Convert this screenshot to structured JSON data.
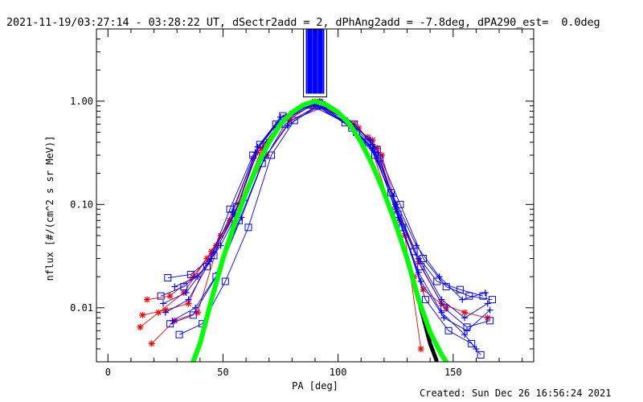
{
  "title": "2021-11-19/03:27:14 - 03:28:22 UT, dSectr2add = 2, dPhAng2add = -7.8deg, dPA290_est=  0.0deg",
  "footer": "Created: Sun Dec 26 16:56:24 2021",
  "colors": {
    "red": "#ff0000",
    "blue": "#0000ff",
    "green": "#00ff00",
    "black": "#000000",
    "axis": "#000000"
  },
  "chart_data": {
    "type": "line",
    "title": "2021-11-19/03:27:14 - 03:28:22 UT, dSectr2add = 2, dPhAng2add = -7.8deg, dPA290_est=  0.0deg",
    "xlabel": "PA [deg]",
    "ylabel": "nflux [#/(cm^2 s sr MeV)]",
    "xlim": [
      -5,
      185
    ],
    "ylim": [
      0.003,
      5
    ],
    "yscale": "log",
    "xticks": [
      0,
      50,
      100,
      150
    ],
    "xtick_labels": [
      "0",
      "50",
      "100",
      "150"
    ],
    "yticks": [
      0.01,
      0.1,
      1.0
    ],
    "ytick_labels": [
      "0.01",
      "0.10",
      "1.00"
    ],
    "grid": false,
    "vertical_band": {
      "x": [
        86,
        94
      ],
      "y": [
        1.1,
        5
      ],
      "color": "#0000ff"
    },
    "series": [
      {
        "color": "#ff0000",
        "marker": "star",
        "values": [
          [
            15,
            0.0085
          ],
          [
            25,
            0.0095
          ],
          [
            35,
            0.011
          ],
          [
            45,
            0.035
          ],
          [
            55,
            0.08
          ],
          [
            65,
            0.32
          ],
          [
            75,
            0.6
          ],
          [
            90,
            0.95
          ],
          [
            105,
            0.6
          ],
          [
            115,
            0.42
          ],
          [
            125,
            0.1
          ],
          [
            135,
            0.028
          ],
          [
            145,
            0.011
          ],
          [
            155,
            0.009
          ],
          [
            165,
            0.008
          ]
        ]
      },
      {
        "color": "#ff0000",
        "marker": "star",
        "values": [
          [
            14,
            0.0065
          ],
          [
            22,
            0.009
          ],
          [
            33,
            0.014
          ],
          [
            43,
            0.03
          ],
          [
            53,
            0.07
          ],
          [
            63,
            0.28
          ],
          [
            73,
            0.55
          ],
          [
            88,
            0.9
          ],
          [
            103,
            0.65
          ],
          [
            113,
            0.45
          ],
          [
            123,
            0.09
          ],
          [
            133,
            0.02
          ],
          [
            140,
            0.0055
          ]
        ]
      },
      {
        "color": "#ff0000",
        "marker": "star",
        "values": [
          [
            17,
            0.012
          ],
          [
            27,
            0.013
          ],
          [
            37,
            0.02
          ],
          [
            47,
            0.04
          ],
          [
            57,
            0.1
          ],
          [
            67,
            0.35
          ],
          [
            77,
            0.7
          ],
          [
            92,
            1.0
          ],
          [
            107,
            0.6
          ],
          [
            117,
            0.35
          ],
          [
            127,
            0.07
          ],
          [
            137,
            0.015
          ],
          [
            147,
            0.01
          ]
        ]
      },
      {
        "color": "#ff0000",
        "marker": "star",
        "values": [
          [
            19,
            0.0045
          ],
          [
            29,
            0.0075
          ],
          [
            39,
            0.009
          ],
          [
            49,
            0.05
          ],
          [
            59,
            0.12
          ],
          [
            69,
            0.3
          ],
          [
            79,
            0.65
          ],
          [
            94,
            0.88
          ],
          [
            109,
            0.55
          ],
          [
            119,
            0.3
          ],
          [
            129,
            0.05
          ],
          [
            136,
            0.004
          ]
        ]
      },
      {
        "color": "#0000ff",
        "marker": "square",
        "values": [
          [
            23,
            0.013
          ],
          [
            33,
            0.016
          ],
          [
            43,
            0.025
          ],
          [
            53,
            0.09
          ],
          [
            63,
            0.3
          ],
          [
            73,
            0.6
          ],
          [
            88,
            0.92
          ],
          [
            103,
            0.62
          ],
          [
            113,
            0.4
          ],
          [
            123,
            0.13
          ],
          [
            133,
            0.035
          ],
          [
            143,
            0.018
          ],
          [
            153,
            0.015
          ],
          [
            163,
            0.013
          ]
        ]
      },
      {
        "color": "#0000ff",
        "marker": "plus",
        "values": [
          [
            25,
            0.009
          ],
          [
            35,
            0.012
          ],
          [
            45,
            0.03
          ],
          [
            55,
            0.08
          ],
          [
            65,
            0.36
          ],
          [
            75,
            0.7
          ],
          [
            90,
            0.95
          ],
          [
            105,
            0.6
          ],
          [
            115,
            0.38
          ],
          [
            125,
            0.1
          ],
          [
            135,
            0.03
          ],
          [
            145,
            0.012
          ],
          [
            155,
            0.008
          ],
          [
            165,
            0.011
          ]
        ]
      },
      {
        "color": "#0000ff",
        "marker": "square",
        "values": [
          [
            27,
            0.007
          ],
          [
            37,
            0.0085
          ],
          [
            47,
            0.02
          ],
          [
            57,
            0.07
          ],
          [
            67,
            0.25
          ],
          [
            77,
            0.6
          ],
          [
            91,
            0.9
          ],
          [
            106,
            0.55
          ],
          [
            116,
            0.3
          ],
          [
            126,
            0.08
          ],
          [
            136,
            0.025
          ],
          [
            146,
            0.01
          ],
          [
            156,
            0.0065
          ],
          [
            166,
            0.0075
          ]
        ]
      },
      {
        "color": "#0000ff",
        "marker": "plus",
        "values": [
          [
            29,
            0.016
          ],
          [
            39,
            0.02
          ],
          [
            49,
            0.04
          ],
          [
            59,
            0.11
          ],
          [
            69,
            0.4
          ],
          [
            79,
            0.75
          ],
          [
            89,
            0.98
          ],
          [
            104,
            0.65
          ],
          [
            114,
            0.42
          ],
          [
            124,
            0.12
          ],
          [
            134,
            0.04
          ],
          [
            144,
            0.02
          ],
          [
            154,
            0.012
          ],
          [
            164,
            0.014
          ]
        ]
      },
      {
        "color": "#0000ff",
        "marker": "square",
        "values": [
          [
            31,
            0.0055
          ],
          [
            41,
            0.007
          ],
          [
            51,
            0.018
          ],
          [
            61,
            0.06
          ],
          [
            71,
            0.3
          ],
          [
            81,
            0.65
          ],
          [
            93,
            0.92
          ],
          [
            108,
            0.5
          ],
          [
            118,
            0.28
          ],
          [
            128,
            0.06
          ],
          [
            138,
            0.012
          ],
          [
            148,
            0.006
          ],
          [
            158,
            0.0045
          ],
          [
            162,
            0.0035
          ]
        ]
      },
      {
        "color": "#0000ff",
        "marker": "plus",
        "values": [
          [
            24,
            0.011
          ],
          [
            34,
            0.014
          ],
          [
            44,
            0.028
          ],
          [
            54,
            0.085
          ],
          [
            64,
            0.32
          ],
          [
            74,
            0.62
          ],
          [
            90,
            0.93
          ],
          [
            105,
            0.58
          ],
          [
            115,
            0.35
          ],
          [
            125,
            0.09
          ],
          [
            135,
            0.022
          ],
          [
            145,
            0.009
          ],
          [
            155,
            0.0055
          ],
          [
            160,
            0.004
          ]
        ]
      },
      {
        "color": "#0000ff",
        "marker": "square",
        "values": [
          [
            26,
            0.0195
          ],
          [
            36,
            0.021
          ],
          [
            46,
            0.032
          ],
          [
            56,
            0.095
          ],
          [
            66,
            0.38
          ],
          [
            76,
            0.72
          ],
          [
            92,
            0.96
          ],
          [
            107,
            0.6
          ],
          [
            117,
            0.34
          ],
          [
            127,
            0.1
          ],
          [
            137,
            0.03
          ],
          [
            147,
            0.016
          ],
          [
            157,
            0.013
          ],
          [
            167,
            0.012
          ]
        ]
      },
      {
        "color": "#0000ff",
        "marker": "plus",
        "values": [
          [
            28,
            0.0075
          ],
          [
            38,
            0.01
          ],
          [
            48,
            0.022
          ],
          [
            58,
            0.075
          ],
          [
            68,
            0.28
          ],
          [
            78,
            0.58
          ],
          [
            91,
            0.9
          ],
          [
            106,
            0.55
          ],
          [
            116,
            0.32
          ],
          [
            126,
            0.075
          ],
          [
            136,
            0.018
          ],
          [
            146,
            0.008
          ],
          [
            156,
            0.006
          ],
          [
            166,
            0.0095
          ]
        ]
      },
      {
        "color": "#000000",
        "marker": "dot",
        "values": [
          [
            37,
            0.003
          ],
          [
            40,
            0.0045
          ],
          [
            45,
            0.012
          ],
          [
            50,
            0.03
          ],
          [
            55,
            0.065
          ],
          [
            60,
            0.13
          ],
          [
            65,
            0.24
          ],
          [
            70,
            0.4
          ],
          [
            75,
            0.6
          ],
          [
            80,
            0.78
          ],
          [
            85,
            0.92
          ],
          [
            90,
            1.0
          ],
          [
            95,
            0.92
          ],
          [
            100,
            0.78
          ],
          [
            105,
            0.6
          ],
          [
            110,
            0.4
          ],
          [
            115,
            0.24
          ],
          [
            120,
            0.13
          ],
          [
            125,
            0.065
          ],
          [
            130,
            0.03
          ],
          [
            135,
            0.012
          ],
          [
            140,
            0.0045
          ],
          [
            143,
            0.003
          ]
        ]
      },
      {
        "color": "#00ff00",
        "marker": "dot",
        "values": [
          [
            37,
            0.003
          ],
          [
            40,
            0.0045
          ],
          [
            45,
            0.012
          ],
          [
            50,
            0.03
          ],
          [
            55,
            0.065
          ],
          [
            60,
            0.13
          ],
          [
            65,
            0.24
          ],
          [
            70,
            0.4
          ],
          [
            75,
            0.6
          ],
          [
            80,
            0.78
          ],
          [
            85,
            0.92
          ],
          [
            90,
            1.0
          ],
          [
            95,
            0.92
          ],
          [
            100,
            0.78
          ],
          [
            105,
            0.6
          ],
          [
            110,
            0.4
          ],
          [
            115,
            0.24
          ],
          [
            120,
            0.13
          ],
          [
            125,
            0.065
          ],
          [
            130,
            0.03
          ],
          [
            135,
            0.012
          ],
          [
            140,
            0.0058
          ],
          [
            145,
            0.0035
          ],
          [
            147,
            0.003
          ]
        ]
      }
    ]
  }
}
